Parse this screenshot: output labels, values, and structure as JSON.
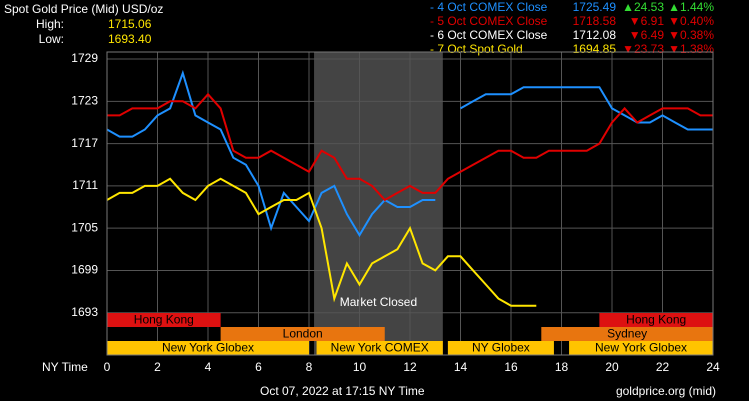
{
  "header": {
    "title": "Spot Gold Price (Mid) USD/oz",
    "high_label": "High:",
    "high": "1715.06",
    "low_label": "Low:",
    "low": "1693.40"
  },
  "legend": [
    {
      "name": "- 4 Oct COMEX Close",
      "color": "#1e90ff",
      "close": 1725.49,
      "change": "▲24.53",
      "pct": "▲1.44%",
      "change_color": "#33dd33"
    },
    {
      "name": "- 5 Oct COMEX Close",
      "color": "#e00000",
      "close": 1718.58,
      "change": "▼6.91",
      "pct": "▼0.40%",
      "change_color": "#e00000"
    },
    {
      "name": "- 6 Oct COMEX Close",
      "color": "#ffffff",
      "close": 1712.08,
      "change": "▼6.49",
      "pct": "▼0.38%",
      "change_color": "#e00000"
    },
    {
      "name": "- 7 Oct Spot Gold",
      "color": "#ffe600",
      "close": 1694.85,
      "change": "▼23.73",
      "pct": "▼1.38%",
      "change_color": "#e00000"
    }
  ],
  "chart_data": {
    "type": "line",
    "x_label": "NY Time",
    "x": [
      0,
      0.5,
      1,
      1.5,
      2,
      2.5,
      3,
      3.5,
      4,
      4.5,
      5,
      5.5,
      6,
      6.5,
      7,
      7.5,
      8,
      8.5,
      9,
      9.5,
      10,
      10.5,
      11,
      11.5,
      12,
      12.5,
      13,
      13.5,
      14,
      14.5,
      15,
      15.5,
      16,
      16.5,
      17,
      17.5,
      18,
      18.5,
      19,
      19.5,
      20,
      20.5,
      21,
      21.5,
      22,
      22.5,
      23,
      23.5,
      24
    ],
    "series": [
      {
        "name": "4 Oct COMEX Close",
        "color": "#1e90ff",
        "values": [
          1719,
          1718,
          1718,
          1719,
          1721,
          1722,
          1727,
          1721,
          1720,
          1719,
          1715,
          1714,
          1711,
          1705,
          1710,
          1708,
          1706,
          1710,
          1711,
          1707,
          1704,
          1707,
          1709,
          1708,
          1708,
          1709,
          1709,
          null,
          1722,
          1723,
          1724,
          1724,
          1724,
          1725,
          1725,
          1725,
          1725,
          1725,
          1725,
          1725,
          1722,
          1721,
          1720,
          1720,
          1721,
          1720,
          1719,
          1719,
          1719
        ]
      },
      {
        "name": "5 Oct COMEX Close",
        "color": "#e00000",
        "values": [
          1721,
          1721,
          1722,
          1722,
          1722,
          1723,
          1723,
          1722,
          1724,
          1722,
          1716,
          1715,
          1715,
          1716,
          1715,
          1714,
          1713,
          1716,
          1715,
          1712,
          1712,
          1711,
          1709,
          1710,
          1711,
          1710,
          1710,
          1712,
          1713,
          1714,
          1715,
          1716,
          1716,
          1715,
          1715,
          1716,
          1716,
          1716,
          1716,
          1717,
          1720,
          1722,
          1720,
          1721,
          1722,
          1722,
          1722,
          1721,
          1721
        ]
      },
      {
        "name": "7 Oct Spot Gold",
        "color": "#ffe600",
        "values": [
          1709,
          1710,
          1710,
          1711,
          1711,
          1712,
          1710,
          1709,
          1711,
          1712,
          1711,
          1710,
          1707,
          1708,
          1709,
          1709,
          1710,
          1705,
          1695,
          1700,
          1697,
          1700,
          1701,
          1702,
          1705,
          1700,
          1699,
          1701,
          1701,
          1699,
          1697,
          1695,
          1694,
          1694,
          1694,
          null,
          null,
          null,
          null,
          null,
          null,
          null,
          null,
          null,
          null,
          null,
          null,
          null,
          null
        ]
      }
    ],
    "xlim": [
      0,
      24
    ],
    "xticks": [
      0,
      2,
      4,
      6,
      8,
      10,
      12,
      14,
      16,
      18,
      20,
      22,
      24
    ],
    "ylim": [
      1687,
      1730
    ],
    "yticks": [
      1693,
      1699,
      1705,
      1711,
      1717,
      1723,
      1729
    ],
    "grid": true,
    "closed": {
      "label": "Market Closed",
      "start": 8.2,
      "end": 13.3,
      "color": "#444444"
    },
    "sessions": [
      [
        {
          "label": "Hong Kong",
          "color": "#dd1111",
          "start": 0,
          "end": 4.5
        },
        {
          "label": "Hong Kong",
          "color": "#dd1111",
          "start": 19.5,
          "end": 24
        }
      ],
      [
        {
          "label": "London",
          "color": "#e8750f",
          "start": 4.5,
          "end": 11
        },
        {
          "label": "Sydney",
          "color": "#e8750f",
          "start": 17.2,
          "end": 24
        }
      ],
      [
        {
          "label": "New York Globex",
          "color": "#ffc400",
          "start": 0,
          "end": 8
        },
        {
          "label": "New York COMEX",
          "color": "#ffc400",
          "start": 8.3,
          "end": 13.3
        },
        {
          "label": "NY Globex",
          "color": "#ffc400",
          "start": 13.5,
          "end": 17.7
        },
        {
          "label": "New York Globex",
          "color": "#ffc400",
          "start": 18.3,
          "end": 24
        }
      ]
    ]
  },
  "footer": {
    "timestamp": "Oct 07, 2022 at 17:15 NY Time",
    "source": "goldprice.org (mid)"
  }
}
